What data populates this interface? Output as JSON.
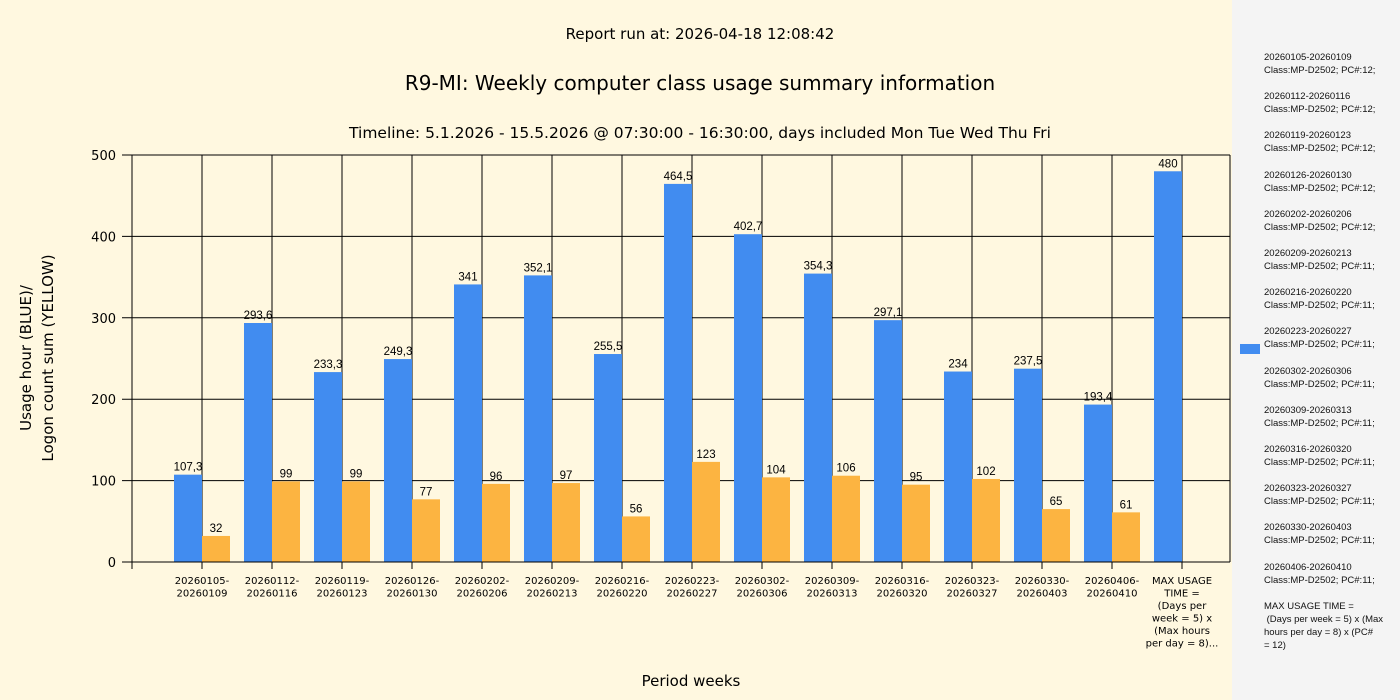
{
  "chart_data": {
    "type": "bar",
    "report_run": "Report run at: 2026-04-18 12:08:42",
    "title": "R9-MI: Weekly computer class usage summary information",
    "subtitle": "Timeline:  5.1.2026  - 15.5.2026  @  07:30:00 -  16:30:00, days included Mon Tue Wed Thu Fri",
    "xlabel": "Period weeks",
    "ylabel": [
      "Usage hour (BLUE)/",
      "Logon count sum (YELLOW)"
    ],
    "ylim": [
      0,
      500
    ],
    "yticks": [
      0,
      100,
      200,
      300,
      400,
      500
    ],
    "grid": true,
    "categories": [
      [
        "20260105-",
        "20260109"
      ],
      [
        "20260112-",
        "20260116"
      ],
      [
        "20260119-",
        "20260123"
      ],
      [
        "20260126-",
        "20260130"
      ],
      [
        "20260202-",
        "20260206"
      ],
      [
        "20260209-",
        "20260213"
      ],
      [
        "20260216-",
        "20260220"
      ],
      [
        "20260223-",
        "20260227"
      ],
      [
        "20260302-",
        "20260306"
      ],
      [
        "20260309-",
        "20260313"
      ],
      [
        "20260316-",
        "20260320"
      ],
      [
        "20260323-",
        "20260327"
      ],
      [
        "20260330-",
        "20260403"
      ],
      [
        "20260406-",
        "20260410"
      ],
      [
        "MAX USAGE",
        "TIME =",
        "(Days per",
        "week = 5) x",
        "(Max hours",
        "per day = 8)..."
      ]
    ],
    "series": [
      {
        "name": "Usage hour",
        "color": "#418cf0",
        "values": [
          107.3,
          293.6,
          233.3,
          249.3,
          341,
          352.1,
          255.5,
          464.5,
          402.7,
          354.3,
          297.1,
          234,
          237.5,
          193.4,
          480
        ],
        "labels": [
          "107,3",
          "293,6",
          "233,3",
          "249,3",
          "341",
          "352,1",
          "255,5",
          "464,5",
          "402,7",
          "354,3",
          "297,1",
          "234",
          "237,5",
          "193,4",
          "480"
        ]
      },
      {
        "name": "Logon count sum",
        "color": "#fcb441",
        "values": [
          32,
          99,
          99,
          77,
          96,
          97,
          56,
          123,
          104,
          106,
          95,
          102,
          65,
          61,
          null
        ],
        "labels": [
          "32",
          "99",
          "99",
          "77",
          "96",
          "97",
          "56",
          "123",
          "104",
          "106",
          "95",
          "102",
          "65",
          "61",
          null
        ]
      }
    ],
    "legend_placement": "right",
    "legend": [
      "20260105-20260109\nClass:MP-D2502; PC#:12;",
      "20260112-20260116\nClass:MP-D2502; PC#:12;",
      "20260119-20260123\nClass:MP-D2502; PC#:12;",
      "20260126-20260130\nClass:MP-D2502; PC#:12;",
      "20260202-20260206\nClass:MP-D2502; PC#:12;",
      "20260209-20260213\nClass:MP-D2502; PC#:11;",
      "20260216-20260220\nClass:MP-D2502; PC#:11;",
      "20260223-20260227\nClass:MP-D2502; PC#:11;",
      "20260302-20260306\nClass:MP-D2502; PC#:11;",
      "20260309-20260313\nClass:MP-D2502; PC#:11;",
      "20260316-20260320\nClass:MP-D2502; PC#:11;",
      "20260323-20260327\nClass:MP-D2502; PC#:11;",
      "20260330-20260403\nClass:MP-D2502; PC#:11;",
      "20260406-20260410\nClass:MP-D2502; PC#:11;",
      "MAX USAGE TIME =\n (Days per week = 5) x (Max hours per day = 8) x (PC#\n= 12)"
    ]
  }
}
